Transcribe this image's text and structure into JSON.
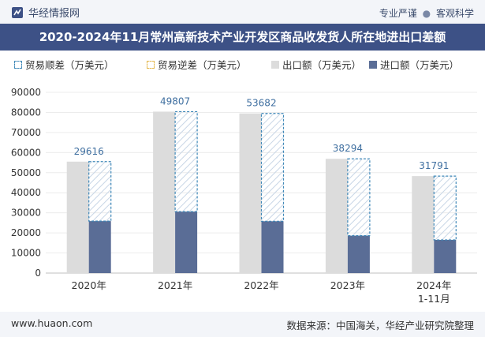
{
  "header": {
    "brand": "华经情报网",
    "slogan_left": "专业严谨",
    "slogan_sep": "●",
    "slogan_right": "客观科学"
  },
  "title": "2020-2024年11月常州高新技术产业开发区商品收发货人所在地进出口差额",
  "legend": {
    "surplus": "贸易顺差（万美元）",
    "deficit": "贸易逆差（万美元）",
    "export": "出口额（万美元）",
    "import": "进口额（万美元）"
  },
  "footer": {
    "url": "www.huaon.com",
    "source": "数据来源：中国海关，华经产业研究院整理"
  },
  "colors": {
    "export": "#dcdcdc",
    "import": "#5a6d96",
    "surplus": "#3f88b8",
    "deficit": "#e3b64a",
    "title_bg": "#3d5186"
  },
  "chart_data": {
    "type": "bar",
    "categories": [
      "2020年",
      "2021年",
      "2022年",
      "2023年",
      "2024年\n1-11月"
    ],
    "series": [
      {
        "name": "出口额（万美元）",
        "values": [
          55500,
          80400,
          79500,
          56900,
          48300
        ]
      },
      {
        "name": "进口额（万美元）",
        "values": [
          25884,
          30593,
          25818,
          18606,
          16509
        ]
      },
      {
        "name": "贸易顺差（万美元）",
        "values": [
          29616,
          49807,
          53682,
          38294,
          31791
        ]
      },
      {
        "name": "贸易逆差（万美元）",
        "values": [
          0,
          0,
          0,
          0,
          0
        ]
      }
    ],
    "data_labels": [
      "29616",
      "49807",
      "53682",
      "38294",
      "31791"
    ],
    "yticks": [
      "0",
      "10000",
      "20000",
      "30000",
      "40000",
      "50000",
      "60000",
      "70000",
      "80000",
      "90000"
    ],
    "ylim": [
      0,
      90000
    ],
    "title": "2020-2024年11月常州高新技术产业开发区商品收发货人所在地进出口差额",
    "xlabel": "",
    "ylabel": "",
    "legend_position": "top"
  }
}
